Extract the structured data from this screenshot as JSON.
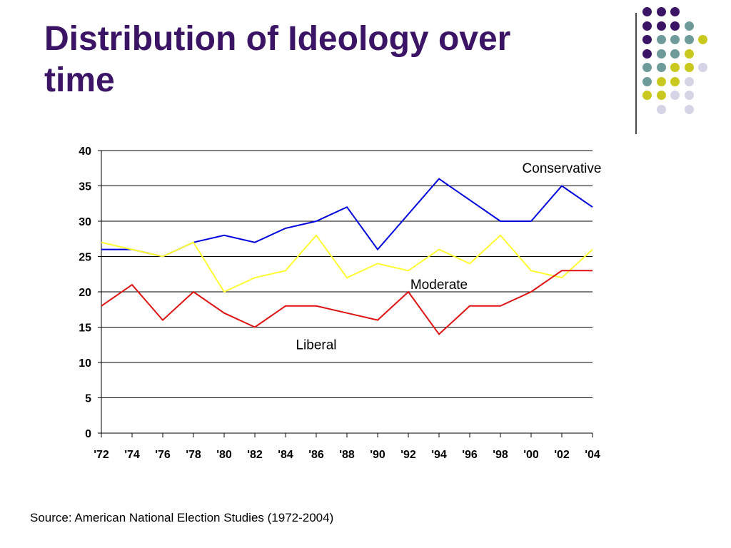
{
  "slide": {
    "title_line1": "Distribution of Ideology over",
    "title_line2": "time",
    "source": "Source: American National Election Studies (1972-2004)"
  },
  "colors": {
    "title": "#3b1466",
    "dot_purple": "#3b1466",
    "dot_teal": "#6e9a9a",
    "dot_yellow": "#c8c81e",
    "dot_lavender": "#d4d4e6"
  },
  "decoration": {
    "dot_grid": [
      [
        "purple",
        "purple",
        "purple",
        "",
        ""
      ],
      [
        "purple",
        "purple",
        "purple",
        "teal",
        ""
      ],
      [
        "purple",
        "teal",
        "teal",
        "teal",
        "yellow"
      ],
      [
        "purple",
        "teal",
        "teal",
        "yellow",
        ""
      ],
      [
        "teal",
        "teal",
        "yellow",
        "yellow",
        "lavender"
      ],
      [
        "teal",
        "yellow",
        "yellow",
        "lavender",
        ""
      ],
      [
        "yellow",
        "yellow",
        "lavender",
        "lavender",
        ""
      ],
      [
        "",
        "lavender",
        "",
        "lavender",
        ""
      ]
    ]
  },
  "chart_data": {
    "type": "line",
    "title": "",
    "xlabel": "",
    "ylabel": "",
    "categories": [
      "'72",
      "'74",
      "'76",
      "'78",
      "'80",
      "'82",
      "'84",
      "'86",
      "'88",
      "'90",
      "'92",
      "'94",
      "'96",
      "'98",
      "'00",
      "'02",
      "'04"
    ],
    "ylim": [
      0,
      40
    ],
    "yticks": [
      0,
      5,
      10,
      15,
      20,
      25,
      30,
      35,
      40
    ],
    "grid": true,
    "legend": "none",
    "series": [
      {
        "name": "Conservative",
        "color": "#0000dd",
        "values": [
          26,
          26,
          25,
          27,
          28,
          27,
          29,
          30,
          32,
          26,
          31,
          36,
          33,
          30,
          30,
          35,
          32
        ]
      },
      {
        "name": "Moderate",
        "color": "#ffff33",
        "values": [
          27,
          26,
          25,
          27,
          20,
          22,
          23,
          28,
          22,
          24,
          23,
          26,
          24,
          28,
          23,
          22,
          26
        ]
      },
      {
        "name": "Liberal",
        "color": "#dd1111",
        "values": [
          18,
          21,
          16,
          20,
          17,
          15,
          18,
          18,
          17,
          16,
          20,
          14,
          18,
          18,
          20,
          23,
          23
        ]
      }
    ],
    "annotations": [
      {
        "text": "Conservative",
        "series": "Conservative",
        "x": "'02",
        "y": 37.5
      },
      {
        "text": "Moderate",
        "series": "Moderate",
        "x": "'94",
        "y": 21
      },
      {
        "text": "Liberal",
        "series": "Liberal",
        "x": "'86",
        "y": 12.5
      }
    ]
  }
}
